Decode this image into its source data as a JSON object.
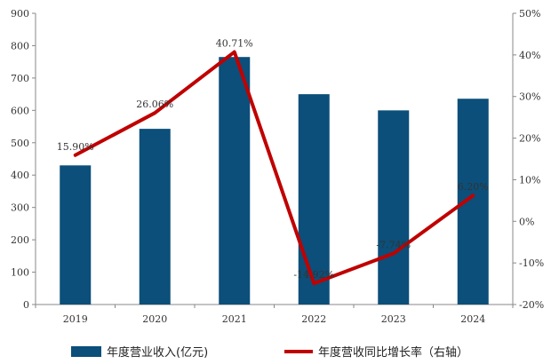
{
  "chart_data": {
    "type": "bar",
    "categories": [
      "2019",
      "2020",
      "2021",
      "2022",
      "2023",
      "2024"
    ],
    "series": [
      {
        "name": "年度营业收入(亿元)",
        "type": "bar",
        "axis": "left",
        "values": [
          430,
          543,
          765,
          650,
          600,
          636
        ]
      },
      {
        "name": "年度营收同比增长率（右轴）",
        "type": "line",
        "axis": "right",
        "values": [
          15.9,
          26.06,
          40.71,
          -14.92,
          -7.74,
          6.2
        ],
        "labels": [
          "15.90%",
          "26.06%",
          "40.71%",
          "-14.92%",
          "-7.74%",
          "6.20%"
        ]
      }
    ],
    "y_left": {
      "min": 0,
      "max": 900,
      "step": 100
    },
    "y_right": {
      "min": -20,
      "max": 50,
      "step": 10,
      "format": "percent"
    },
    "legend": "bottom",
    "grid": false,
    "colors": {
      "bar": "#0b4f7a",
      "line": "#c00000"
    }
  }
}
